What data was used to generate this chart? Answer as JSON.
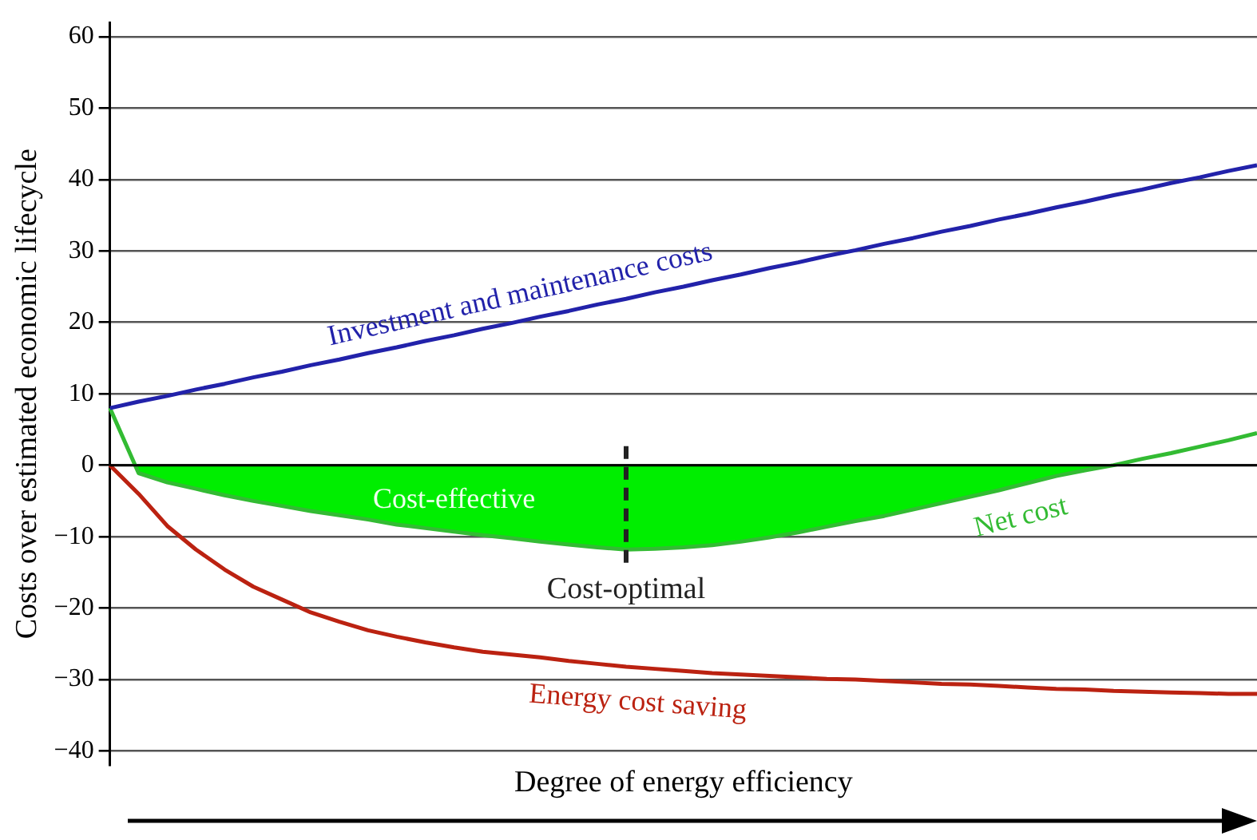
{
  "chart_data": {
    "type": "line",
    "ylabel": "Costs over estimated economic lifecycle",
    "xlabel": "Degree of energy efficiency",
    "categories": [
      null,
      null,
      null,
      null,
      null,
      null,
      null,
      null,
      null,
      null,
      null,
      null,
      null,
      null,
      null,
      null,
      null,
      null,
      null,
      null,
      null,
      null,
      null,
      null,
      null,
      null,
      null,
      null,
      null,
      null,
      null,
      null,
      null,
      null,
      null,
      null,
      null,
      null,
      null,
      null,
      null
    ],
    "ylim": [
      -42,
      62
    ],
    "yticks": [
      {
        "value": -40,
        "label": "−40"
      },
      {
        "value": -30,
        "label": "−30"
      },
      {
        "value": -20,
        "label": "−20"
      },
      {
        "value": -10,
        "label": "−10"
      },
      0,
      10,
      20,
      30,
      40,
      50,
      60
    ],
    "tick_labels": "y",
    "grid": "y",
    "legend": false,
    "marker": "none",
    "series": [
      {
        "name": "Investment and maintenance costs",
        "color": "#2222aa",
        "values": [
          8,
          8.9,
          9.7,
          10.6,
          11.4,
          12.3,
          13.1,
          14,
          14.8,
          15.7,
          16.5,
          17.4,
          18.2,
          19.1,
          19.9,
          20.8,
          21.6,
          22.5,
          23.3,
          24.2,
          25,
          25.9,
          26.7,
          27.6,
          28.4,
          29.3,
          30.1,
          31,
          31.8,
          32.7,
          33.5,
          34.4,
          35.2,
          36.1,
          36.9,
          37.8,
          38.6,
          39.5,
          40.3,
          41.2,
          42
        ]
      },
      {
        "name": "Net cost",
        "type": "area",
        "color": "#33bb33",
        "values": [
          8,
          -1.1,
          -2.4,
          -3.3,
          -4.2,
          -5,
          -5.7,
          -6.4,
          -7,
          -7.6,
          -8.3,
          -8.8,
          -9.3,
          -9.8,
          -10.2,
          -10.7,
          -11.1,
          -11.5,
          -11.8,
          -11.7,
          -11.5,
          -11.2,
          -10.7,
          -10.1,
          -9.4,
          -8.6,
          -7.8,
          -7.1,
          -6.2,
          -5.3,
          -4.4,
          -3.5,
          -2.5,
          -1.5,
          -0.7,
          0,
          0.9,
          1.7,
          2.6,
          3.5,
          4.5
        ]
      },
      {
        "name": "Energy cost saving",
        "color": "#bb2211",
        "values": [
          0,
          -4,
          -8.5,
          -11.8,
          -14.6,
          -17,
          -18.8,
          -20.6,
          -21.9,
          -23.1,
          -24,
          -24.8,
          -25.5,
          -26.1,
          -26.5,
          -26.9,
          -27.4,
          -27.8,
          -28.2,
          -28.5,
          -28.8,
          -29.1,
          -29.3,
          -29.5,
          -29.7,
          -29.9,
          -30,
          -30.2,
          -30.4,
          -30.6,
          -30.7,
          -30.9,
          -31.1,
          -31.3,
          -31.4,
          -31.6,
          -31.7,
          -31.8,
          -31.9,
          -32,
          -32
        ]
      }
    ],
    "annotations": [
      "Cost-effective",
      {
        "text": "Cost-optimal",
        "y": -11.8
      }
    ]
  }
}
